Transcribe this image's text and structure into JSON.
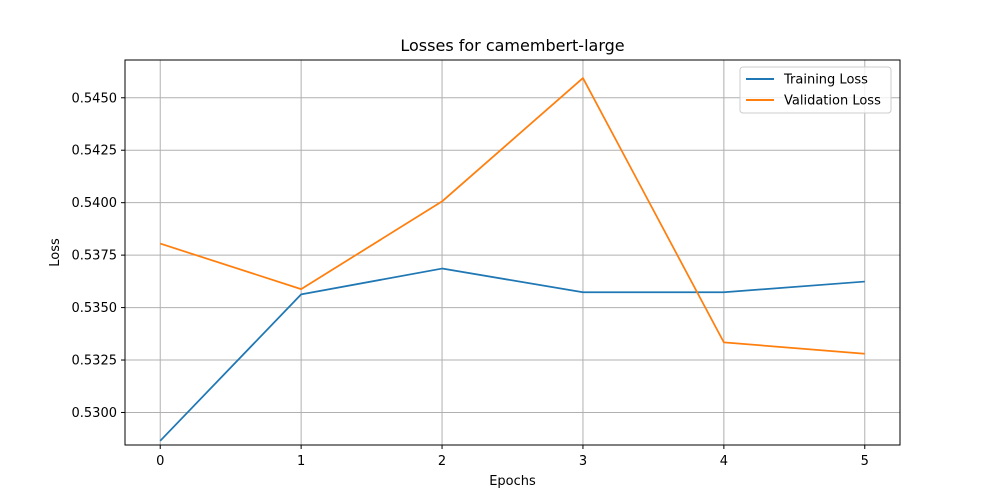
{
  "chart_data": {
    "type": "line",
    "title": "Losses for camembert-large",
    "xlabel": "Epochs",
    "ylabel": "Loss",
    "x": [
      0,
      1,
      2,
      3,
      4,
      5
    ],
    "xlim": [
      -0.25,
      5.25
    ],
    "ylim": [
      0.52845,
      0.5468
    ],
    "xticks": [
      "0",
      "1",
      "2",
      "3",
      "4",
      "5"
    ],
    "yticks": [
      0.53,
      0.5325,
      0.535,
      0.5375,
      0.54,
      0.5425,
      0.545
    ],
    "ytick_labels": [
      "0.5300",
      "0.5325",
      "0.5350",
      "0.5375",
      "0.5400",
      "0.5425",
      "0.5450"
    ],
    "grid": true,
    "legend_position": "top-right",
    "series": [
      {
        "name": "Training Loss",
        "color": "#1f77b4",
        "values": [
          0.52865,
          0.53563,
          0.53686,
          0.53573,
          0.53573,
          0.53624
        ]
      },
      {
        "name": "Validation Loss",
        "color": "#ff7f0e",
        "values": [
          0.53805,
          0.53588,
          0.54006,
          0.54594,
          0.53334,
          0.5328
        ]
      }
    ]
  }
}
